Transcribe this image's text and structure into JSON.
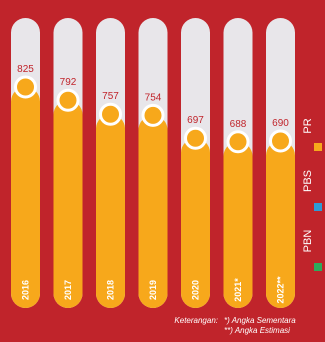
{
  "chart_data": {
    "type": "bar",
    "categories": [
      "2016",
      "2017",
      "2018",
      "2019",
      "2020",
      "2021*",
      "2022**"
    ],
    "values": [
      825,
      792,
      757,
      754,
      697,
      688,
      690
    ],
    "value_labels": [
      "825",
      "792",
      "757",
      "754",
      "697",
      "688",
      "690"
    ],
    "ylim": [
      0,
      1000
    ],
    "grid": false
  },
  "legend": {
    "items": [
      {
        "label": "PR",
        "color": "#f7a81b"
      },
      {
        "label": "PBS",
        "color": "#2e9bd6"
      },
      {
        "label": "PBN",
        "color": "#2eaa5c"
      }
    ]
  },
  "notes": {
    "key": "Keterangan:",
    "line1": "*) Angka Sementara",
    "line2": "**) Angka Estimasi"
  },
  "colors": {
    "background": "#c0242b",
    "track": "#e8e6ea",
    "bar": "#f7a81b",
    "label_text": "#c0242b"
  }
}
